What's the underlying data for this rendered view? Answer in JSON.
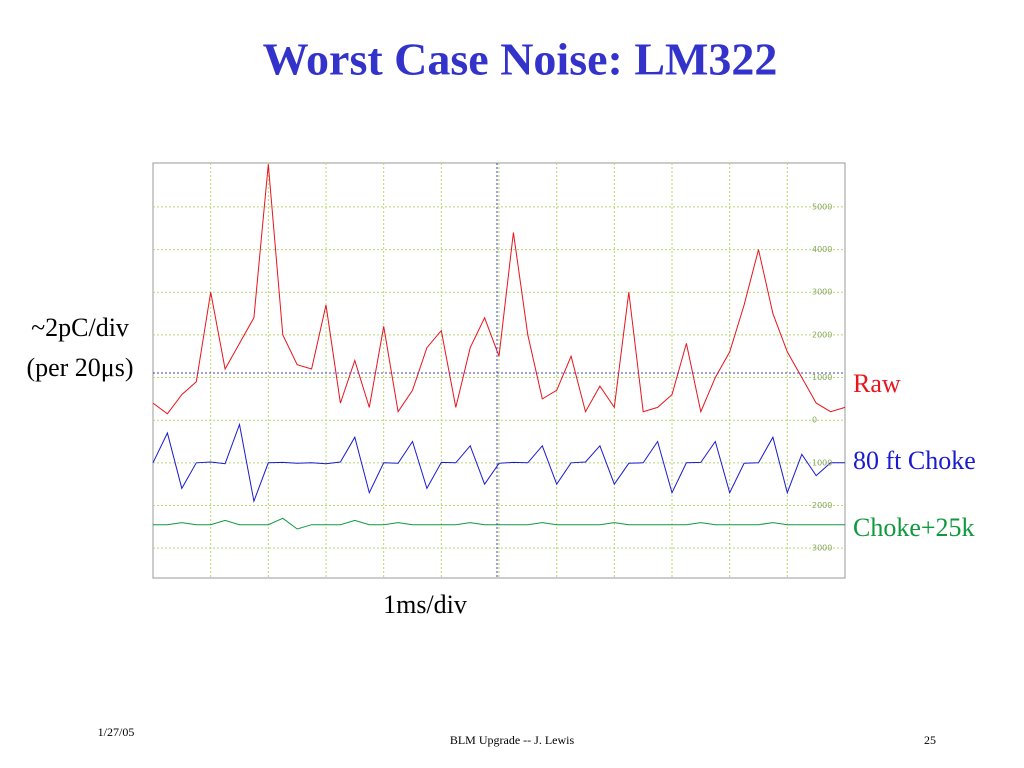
{
  "chart_data": {
    "type": "line",
    "title": "Worst Case Noise: LM322",
    "y_label": [
      "~2pC/div",
      "(per 20μs)"
    ],
    "x_label": "1ms/div",
    "x": [
      0,
      0.25,
      0.5,
      0.75,
      1,
      1.25,
      1.5,
      1.75,
      2,
      2.25,
      2.5,
      2.75,
      3,
      3.25,
      3.5,
      3.75,
      4,
      4.25,
      4.5,
      4.75,
      5,
      5.25,
      5.5,
      5.75,
      6,
      6.25,
      6.5,
      6.75,
      7,
      7.25,
      7.5,
      7.75,
      8,
      8.25,
      8.5,
      8.75,
      9,
      9.25,
      9.5,
      9.75,
      10,
      10.25,
      10.5,
      10.75,
      11,
      11.25,
      11.5,
      11.75,
      12
    ],
    "xlim": [
      0,
      12
    ],
    "ylim": [
      -3700,
      6030
    ],
    "yticks": [
      5000,
      4000,
      3000,
      2000,
      1000,
      0,
      {
        "value": -1000,
        "label": "1000"
      },
      {
        "value": -2000,
        "label": "2000"
      },
      {
        "value": -3000,
        "label": "3000"
      }
    ],
    "grid": true,
    "series": [
      {
        "name": "Raw",
        "color": "#e8141e",
        "values": [
          400,
          150,
          600,
          900,
          3000,
          1200,
          1800,
          2400,
          6000,
          2000,
          1300,
          1200,
          2700,
          400,
          1400,
          300,
          2200,
          200,
          700,
          1700,
          2100,
          300,
          1700,
          2400,
          1500,
          4400,
          2000,
          500,
          700,
          1500,
          200,
          800,
          300,
          3000,
          200,
          300,
          600,
          1800,
          200,
          1000,
          1600,
          2700,
          4000,
          2500,
          1600,
          1000,
          400,
          200,
          300
        ]
      },
      {
        "name": "80 ft Choke",
        "color": "#1a1ad0",
        "values": [
          -1000,
          -300,
          -1600,
          -1000,
          -980,
          -1020,
          -100,
          -1900,
          -1000,
          -990,
          -1010,
          -1000,
          -1020,
          -980,
          -400,
          -1700,
          -1000,
          -1010,
          -500,
          -1600,
          -990,
          -1000,
          -600,
          -1500,
          -1010,
          -990,
          -1000,
          -600,
          -1500,
          -1000,
          -980,
          -600,
          -1500,
          -1010,
          -1000,
          -500,
          -1700,
          -1000,
          -990,
          -500,
          -1700,
          -1010,
          -1000,
          -400,
          -1700,
          -800,
          -1300,
          -1000,
          -1000
        ]
      },
      {
        "name": "Choke+25k",
        "color": "#0e9a3c",
        "values": [
          -2450,
          -2450,
          -2400,
          -2450,
          -2450,
          -2350,
          -2450,
          -2450,
          -2450,
          -2300,
          -2550,
          -2450,
          -2450,
          -2450,
          -2350,
          -2450,
          -2450,
          -2400,
          -2450,
          -2450,
          -2450,
          -2450,
          -2400,
          -2450,
          -2450,
          -2450,
          -2450,
          -2400,
          -2450,
          -2450,
          -2450,
          -2450,
          -2400,
          -2450,
          -2450,
          -2450,
          -2450,
          -2450,
          -2400,
          -2450,
          -2450,
          -2450,
          -2450,
          -2400,
          -2450,
          -2450,
          -2450,
          -2450,
          -2450
        ]
      }
    ]
  },
  "footer": {
    "date": "1/27/05",
    "text": "BLM Upgrade -- J. Lewis",
    "page": "25"
  }
}
